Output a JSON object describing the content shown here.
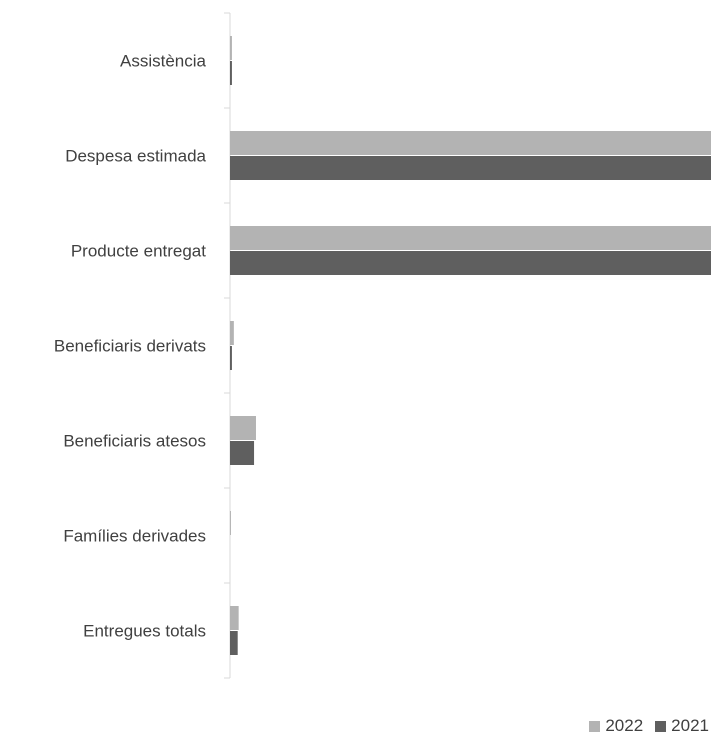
{
  "chart_data": {
    "type": "bar",
    "orientation": "horizontal",
    "categories": [
      "Assistència",
      "Despesa estimada",
      "Producte entregat",
      "Beneficiaris derivats",
      "Beneficiaris atesos",
      "Famílies derivades",
      "Entregues totals"
    ],
    "series": [
      {
        "name": "2022",
        "color": "#b3b3b3",
        "values": [
          2,
          500,
          500,
          4,
          27,
          1,
          9
        ]
      },
      {
        "name": "2021",
        "color": "#5f5f5f",
        "values": [
          2,
          500,
          500,
          2,
          25,
          0,
          8
        ]
      }
    ],
    "xlim": [
      0,
      500
    ],
    "grid": false,
    "legend_position": "bottom-right"
  }
}
